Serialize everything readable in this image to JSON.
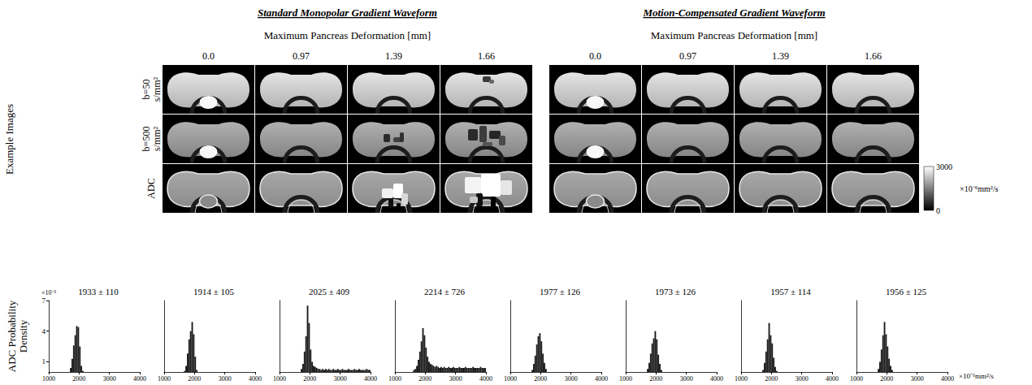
{
  "figure": {
    "panels": [
      {
        "title": "Standard Monopolar Gradient Waveform",
        "subtitle": "Maximum Pancreas Deformation [mm]",
        "columns": [
          {
            "value": 0,
            "label": "0.0"
          },
          0.97,
          1.39,
          1.66
        ]
      },
      {
        "title": "Motion-Compensated Gradient Waveform",
        "subtitle": "Maximum Pancreas Deformation [mm]",
        "columns": [
          {
            "value": 0,
            "label": "0.0"
          },
          0.97,
          1.39,
          1.66
        ]
      }
    ],
    "row_group_label": "Example Images",
    "rows": [
      "b=50 s/mm²",
      "b=500 s/mm²",
      "ADC"
    ],
    "colorbar": {
      "range": [
        0,
        3000
      ],
      "ticks": [
        0,
        3000
      ],
      "label": "×10⁻⁶mm²/s"
    },
    "histogram_row_label": "ADC Probability Density"
  },
  "chart_data": [
    {
      "type": "histogram",
      "title": "1933 ± 110",
      "color": "#1a1a1a",
      "y_multiplier": "×10⁻³",
      "bins": [
        1000,
        1050,
        1100,
        1150,
        1200,
        1250,
        1300,
        1350,
        1400,
        1450,
        1500,
        1550,
        1600,
        1650,
        1700,
        1750,
        1800,
        1850,
        1900,
        1950,
        2000,
        2050,
        2100,
        2150,
        2200,
        2250,
        2300,
        2350,
        2400,
        2450,
        2500,
        2550,
        2600,
        2650,
        2700,
        2750,
        2800,
        2850,
        2900,
        2950,
        3000,
        3050,
        3100,
        3150,
        3200,
        3250,
        3300,
        3350,
        3400,
        3450,
        3500,
        3550,
        3600,
        3650,
        3700,
        3750,
        3800,
        3850,
        3900,
        3950,
        4000
      ],
      "counts": [
        0,
        0,
        0,
        0,
        0,
        0,
        0,
        0,
        0,
        0,
        0,
        0,
        0,
        0,
        0.4,
        1.3,
        2.6,
        3.6,
        4.5,
        4.4,
        2.5,
        0.6,
        0.1,
        0,
        0,
        0,
        0,
        0,
        0,
        0,
        0,
        0,
        0,
        0,
        0,
        0,
        0,
        0,
        0,
        0,
        0,
        0,
        0,
        0,
        0,
        0,
        0,
        0,
        0,
        0,
        0,
        0,
        0,
        0,
        0,
        0,
        0,
        0,
        0,
        0
      ],
      "xlim": [
        1000,
        4000
      ],
      "xticks": [
        1000,
        2000,
        3000,
        4000
      ],
      "ylim": [
        0,
        7
      ],
      "yticks": [
        1,
        4,
        7
      ]
    },
    {
      "type": "histogram",
      "title": "1914 ± 105",
      "color": "#1a1a1a",
      "bins": [
        1000,
        1050,
        1100,
        1150,
        1200,
        1250,
        1300,
        1350,
        1400,
        1450,
        1500,
        1550,
        1600,
        1650,
        1700,
        1750,
        1800,
        1850,
        1900,
        1950,
        2000,
        2050,
        2100,
        2150,
        2200,
        2250,
        2300,
        2350,
        2400,
        2450,
        2500,
        2550,
        2600,
        2650,
        2700,
        2750,
        2800,
        2850,
        2900,
        2950,
        3000,
        3050,
        3100,
        3150,
        3200,
        3250,
        3300,
        3350,
        3400,
        3450,
        3500,
        3550,
        3600,
        3650,
        3700,
        3750,
        3800,
        3850,
        3900,
        3950,
        4000
      ],
      "counts": [
        0,
        0,
        0,
        0,
        0,
        0,
        0,
        0,
        0,
        0,
        0,
        0,
        0,
        0.1,
        0.6,
        1.8,
        3.2,
        4.0,
        4.9,
        3.7,
        1.5,
        0.2,
        0,
        0,
        0,
        0,
        0,
        0,
        0,
        0,
        0,
        0,
        0,
        0,
        0,
        0,
        0,
        0,
        0,
        0,
        0,
        0,
        0,
        0,
        0,
        0,
        0,
        0,
        0,
        0,
        0,
        0,
        0,
        0,
        0,
        0,
        0,
        0,
        0,
        0
      ],
      "xlim": [
        1000,
        4000
      ],
      "xticks": [
        1000,
        2000,
        3000,
        4000
      ],
      "ylim": [
        0,
        7
      ],
      "yticks": [
        1,
        4,
        7
      ],
      "tick_labels": "x"
    },
    {
      "type": "histogram",
      "title": "2025 ± 409",
      "color": "#1a1a1a",
      "bins": [
        1000,
        1050,
        1100,
        1150,
        1200,
        1250,
        1300,
        1350,
        1400,
        1450,
        1500,
        1550,
        1600,
        1650,
        1700,
        1750,
        1800,
        1850,
        1900,
        1950,
        2000,
        2050,
        2100,
        2150,
        2200,
        2250,
        2300,
        2350,
        2400,
        2450,
        2500,
        2550,
        2600,
        2650,
        2700,
        2750,
        2800,
        2850,
        2900,
        2950,
        3000,
        3050,
        3100,
        3150,
        3200,
        3250,
        3300,
        3350,
        3400,
        3450,
        3500,
        3550,
        3600,
        3650,
        3700,
        3750,
        3800,
        3850,
        3900,
        3950,
        4000
      ],
      "counts": [
        0,
        0,
        0,
        0,
        0,
        0,
        0,
        0,
        0,
        0,
        0,
        0,
        0,
        0,
        0.3,
        0.8,
        2.0,
        3.5,
        6.5,
        4.8,
        2.2,
        1.0,
        0.6,
        0.5,
        0.4,
        0.3,
        0.3,
        0.2,
        0.3,
        0.2,
        0.3,
        0.2,
        0.3,
        0.2,
        0.2,
        0.3,
        0.2,
        0.2,
        0.3,
        0.2,
        0.2,
        0.3,
        0.2,
        0.2,
        0.2,
        0.3,
        0.2,
        0.2,
        0.2,
        0.3,
        0.2,
        0.2,
        0.3,
        0.2,
        0.2,
        0.2,
        0.2,
        0.3,
        0.2,
        0.2
      ],
      "xlim": [
        1000,
        4000
      ],
      "xticks": [
        1000,
        2000,
        3000,
        4000
      ],
      "ylim": [
        0,
        7
      ],
      "yticks": [
        1,
        4,
        7
      ],
      "tick_labels": "x"
    },
    {
      "type": "histogram",
      "title": "2214 ± 726",
      "color": "#1a1a1a",
      "bins": [
        1000,
        1050,
        1100,
        1150,
        1200,
        1250,
        1300,
        1350,
        1400,
        1450,
        1500,
        1550,
        1600,
        1650,
        1700,
        1750,
        1800,
        1850,
        1900,
        1950,
        2000,
        2050,
        2100,
        2150,
        2200,
        2250,
        2300,
        2350,
        2400,
        2450,
        2500,
        2550,
        2600,
        2650,
        2700,
        2750,
        2800,
        2850,
        2900,
        2950,
        3000,
        3050,
        3100,
        3150,
        3200,
        3250,
        3300,
        3350,
        3400,
        3450,
        3500,
        3550,
        3600,
        3650,
        3700,
        3750,
        3800,
        3850,
        3900,
        3950,
        4000
      ],
      "counts": [
        0,
        0,
        0,
        0,
        0,
        0,
        0,
        0,
        0,
        0,
        0,
        0,
        0.2,
        0.3,
        0.6,
        1.2,
        2.0,
        3.0,
        4.3,
        3.6,
        2.4,
        1.5,
        1.0,
        0.8,
        0.7,
        0.6,
        0.5,
        0.6,
        0.5,
        0.4,
        0.5,
        0.4,
        0.5,
        0.4,
        0.4,
        0.5,
        0.4,
        0.4,
        0.5,
        0.4,
        0.4,
        0.4,
        0.5,
        0.4,
        0.4,
        0.4,
        0.5,
        0.4,
        0.4,
        0.4,
        0.4,
        0.5,
        0.4,
        0.4,
        0.4,
        0.4,
        0.5,
        0.4,
        0.4,
        0.4
      ],
      "xlim": [
        1000,
        4000
      ],
      "xticks": [
        1000,
        2000,
        3000,
        4000
      ],
      "ylim": [
        0,
        7
      ],
      "yticks": [
        1,
        4,
        7
      ],
      "tick_labels": "x"
    },
    {
      "type": "histogram",
      "title": "1977 ± 126",
      "color": "#1a1a1a",
      "bins": [
        1000,
        1050,
        1100,
        1150,
        1200,
        1250,
        1300,
        1350,
        1400,
        1450,
        1500,
        1550,
        1600,
        1650,
        1700,
        1750,
        1800,
        1850,
        1900,
        1950,
        2000,
        2050,
        2100,
        2150,
        2200,
        2250,
        2300,
        2350,
        2400,
        2450,
        2500,
        2550,
        2600,
        2650,
        2700,
        2750,
        2800,
        2850,
        2900,
        2950,
        3000,
        3050,
        3100,
        3150,
        3200,
        3250,
        3300,
        3350,
        3400,
        3450,
        3500,
        3550,
        3600,
        3650,
        3700,
        3750,
        3800,
        3850,
        3900,
        3950,
        4000
      ],
      "counts": [
        0,
        0,
        0,
        0,
        0,
        0,
        0,
        0,
        0,
        0,
        0,
        0,
        0,
        0,
        0.2,
        0.8,
        1.6,
        2.7,
        3.5,
        3.8,
        3.0,
        1.8,
        0.9,
        0.3,
        0,
        0,
        0,
        0,
        0,
        0,
        0,
        0,
        0,
        0,
        0,
        0,
        0,
        0,
        0,
        0,
        0,
        0,
        0,
        0,
        0,
        0,
        0,
        0,
        0,
        0,
        0,
        0,
        0,
        0,
        0,
        0,
        0,
        0,
        0,
        0
      ],
      "xlim": [
        1000,
        4000
      ],
      "xticks": [
        1000,
        2000,
        3000,
        4000
      ],
      "ylim": [
        0,
        7
      ],
      "yticks": [
        1,
        4,
        7
      ],
      "tick_labels": "x"
    },
    {
      "type": "histogram",
      "title": "1973 ± 126",
      "color": "#1a1a1a",
      "bins": [
        1000,
        1050,
        1100,
        1150,
        1200,
        1250,
        1300,
        1350,
        1400,
        1450,
        1500,
        1550,
        1600,
        1650,
        1700,
        1750,
        1800,
        1850,
        1900,
        1950,
        2000,
        2050,
        2100,
        2150,
        2200,
        2250,
        2300,
        2350,
        2400,
        2450,
        2500,
        2550,
        2600,
        2650,
        2700,
        2750,
        2800,
        2850,
        2900,
        2950,
        3000,
        3050,
        3100,
        3150,
        3200,
        3250,
        3300,
        3350,
        3400,
        3450,
        3500,
        3550,
        3600,
        3650,
        3700,
        3750,
        3800,
        3850,
        3900,
        3950,
        4000
      ],
      "counts": [
        0,
        0,
        0,
        0,
        0,
        0,
        0,
        0,
        0,
        0,
        0,
        0,
        0,
        0,
        0.3,
        0.9,
        1.8,
        2.8,
        3.3,
        4.0,
        3.2,
        1.7,
        0.8,
        0.2,
        0,
        0,
        0,
        0,
        0,
        0,
        0,
        0,
        0,
        0,
        0,
        0,
        0,
        0,
        0,
        0,
        0,
        0,
        0,
        0,
        0,
        0,
        0,
        0,
        0,
        0,
        0,
        0,
        0,
        0,
        0,
        0,
        0,
        0,
        0,
        0
      ],
      "xlim": [
        1000,
        4000
      ],
      "xticks": [
        1000,
        2000,
        3000,
        4000
      ],
      "ylim": [
        0,
        7
      ],
      "yticks": [
        1,
        4,
        7
      ],
      "tick_labels": "x"
    },
    {
      "type": "histogram",
      "title": "1957 ± 114",
      "color": "#1a1a1a",
      "bins": [
        1000,
        1050,
        1100,
        1150,
        1200,
        1250,
        1300,
        1350,
        1400,
        1450,
        1500,
        1550,
        1600,
        1650,
        1700,
        1750,
        1800,
        1850,
        1900,
        1950,
        2000,
        2050,
        2100,
        2150,
        2200,
        2250,
        2300,
        2350,
        2400,
        2450,
        2500,
        2550,
        2600,
        2650,
        2700,
        2750,
        2800,
        2850,
        2900,
        2950,
        3000,
        3050,
        3100,
        3150,
        3200,
        3250,
        3300,
        3350,
        3400,
        3450,
        3500,
        3550,
        3600,
        3650,
        3700,
        3750,
        3800,
        3850,
        3900,
        3950,
        4000
      ],
      "counts": [
        0,
        0,
        0,
        0,
        0,
        0,
        0,
        0,
        0,
        0,
        0,
        0,
        0,
        0,
        0.2,
        0.9,
        2.0,
        3.2,
        4.8,
        3.6,
        2.8,
        1.4,
        0.5,
        0.1,
        0,
        0,
        0,
        0,
        0,
        0,
        0,
        0,
        0,
        0,
        0,
        0,
        0,
        0,
        0,
        0,
        0,
        0,
        0,
        0,
        0,
        0,
        0,
        0,
        0,
        0,
        0,
        0,
        0,
        0,
        0,
        0,
        0,
        0,
        0,
        0
      ],
      "xlim": [
        1000,
        4000
      ],
      "xticks": [
        1000,
        2000,
        3000,
        4000
      ],
      "ylim": [
        0,
        7
      ],
      "yticks": [
        1,
        4,
        7
      ],
      "tick_labels": "x"
    },
    {
      "type": "histogram",
      "title": "1956 ± 125",
      "color": "#1a1a1a",
      "xlabel": "×10⁻⁶mm²/s",
      "bins": [
        1000,
        1050,
        1100,
        1150,
        1200,
        1250,
        1300,
        1350,
        1400,
        1450,
        1500,
        1550,
        1600,
        1650,
        1700,
        1750,
        1800,
        1850,
        1900,
        1950,
        2000,
        2050,
        2100,
        2150,
        2200,
        2250,
        2300,
        2350,
        2400,
        2450,
        2500,
        2550,
        2600,
        2650,
        2700,
        2750,
        2800,
        2850,
        2900,
        2950,
        3000,
        3050,
        3100,
        3150,
        3200,
        3250,
        3300,
        3350,
        3400,
        3450,
        3500,
        3550,
        3600,
        3650,
        3700,
        3750,
        3800,
        3850,
        3900,
        3950,
        4000
      ],
      "counts": [
        0,
        0,
        0,
        0,
        0,
        0,
        0,
        0,
        0,
        0,
        0,
        0,
        0,
        0,
        0.3,
        1.0,
        2.2,
        3.6,
        4.9,
        3.7,
        2.5,
        1.3,
        0.6,
        0.2,
        0,
        0,
        0,
        0,
        0,
        0,
        0,
        0,
        0,
        0,
        0,
        0,
        0,
        0,
        0,
        0,
        0,
        0,
        0,
        0,
        0,
        0,
        0,
        0,
        0,
        0,
        0,
        0,
        0,
        0,
        0,
        0,
        0,
        0,
        0,
        0
      ],
      "xlim": [
        1000,
        4000
      ],
      "xticks": [
        1000,
        2000,
        3000,
        4000
      ],
      "ylim": [
        0,
        7
      ],
      "yticks": [
        1,
        4,
        7
      ],
      "tick_labels": "x"
    }
  ]
}
